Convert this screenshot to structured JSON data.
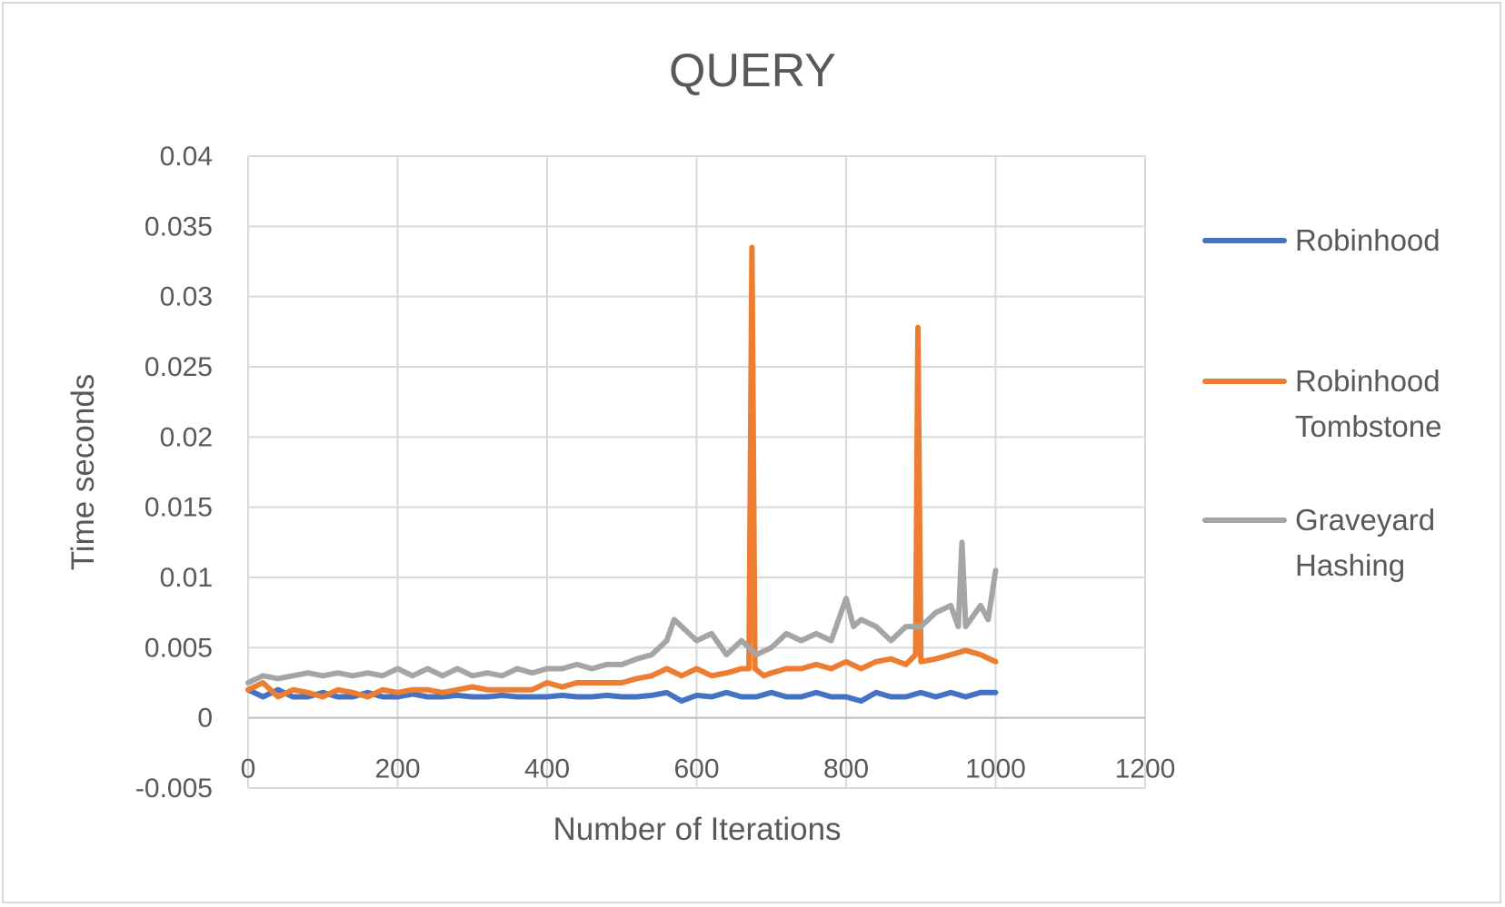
{
  "chart_data": {
    "type": "line",
    "title": "QUERY",
    "xlabel": "Number of Iterations",
    "ylabel": "Time seconds",
    "xlim": [
      0,
      1200
    ],
    "ylim": [
      -0.005,
      0.04
    ],
    "x_ticks": [
      0,
      200,
      400,
      600,
      800,
      1000,
      1200
    ],
    "y_ticks": [
      -0.005,
      0,
      0.005,
      0.01,
      0.015,
      0.02,
      0.025,
      0.03,
      0.035,
      0.04
    ],
    "x_tick_labels": [
      "0",
      "200",
      "400",
      "600",
      "800",
      "1000",
      "1200"
    ],
    "y_tick_labels": [
      "-0.005",
      "0",
      "0.005",
      "0.01",
      "0.015",
      "0.02",
      "0.025",
      "0.03",
      "0.035",
      "0.04"
    ],
    "grid": true,
    "legend_position": "right",
    "series": [
      {
        "name": "Robinhood",
        "legend_lines": [
          "Robinhood"
        ],
        "color": "#4472C4",
        "x": [
          0,
          20,
          40,
          60,
          80,
          100,
          120,
          140,
          160,
          180,
          200,
          220,
          240,
          260,
          280,
          300,
          320,
          340,
          360,
          380,
          400,
          420,
          440,
          460,
          480,
          500,
          520,
          540,
          560,
          580,
          600,
          620,
          640,
          660,
          680,
          700,
          720,
          740,
          760,
          780,
          800,
          820,
          840,
          860,
          880,
          900,
          920,
          940,
          960,
          980,
          1000
        ],
        "values": [
          0.002,
          0.0015,
          0.002,
          0.0015,
          0.0015,
          0.0018,
          0.0015,
          0.0015,
          0.0018,
          0.0015,
          0.0015,
          0.0017,
          0.0015,
          0.0015,
          0.0016,
          0.0015,
          0.0015,
          0.0016,
          0.0015,
          0.0015,
          0.0015,
          0.0016,
          0.0015,
          0.0015,
          0.0016,
          0.0015,
          0.0015,
          0.0016,
          0.0018,
          0.0012,
          0.0016,
          0.0015,
          0.0018,
          0.0015,
          0.0015,
          0.0018,
          0.0015,
          0.0015,
          0.0018,
          0.0015,
          0.0015,
          0.0012,
          0.0018,
          0.0015,
          0.0015,
          0.0018,
          0.0015,
          0.0018,
          0.0015,
          0.0018,
          0.0018
        ]
      },
      {
        "name": "Robinhood Tombstone",
        "legend_lines": [
          "Robinhood",
          "Tombstone"
        ],
        "color": "#ED7D31",
        "x": [
          0,
          20,
          40,
          60,
          80,
          100,
          120,
          140,
          160,
          180,
          200,
          220,
          240,
          260,
          280,
          300,
          320,
          340,
          360,
          380,
          400,
          420,
          440,
          460,
          480,
          500,
          520,
          540,
          560,
          580,
          600,
          620,
          640,
          660,
          670,
          674,
          678,
          690,
          700,
          720,
          740,
          760,
          780,
          800,
          820,
          840,
          860,
          880,
          893,
          896,
          900,
          920,
          940,
          960,
          980,
          1000
        ],
        "values": [
          0.002,
          0.0025,
          0.0015,
          0.002,
          0.0018,
          0.0015,
          0.002,
          0.0018,
          0.0015,
          0.002,
          0.0018,
          0.002,
          0.002,
          0.0018,
          0.002,
          0.0022,
          0.002,
          0.002,
          0.002,
          0.002,
          0.0025,
          0.0022,
          0.0025,
          0.0025,
          0.0025,
          0.0025,
          0.0028,
          0.003,
          0.0035,
          0.003,
          0.0035,
          0.003,
          0.0032,
          0.0035,
          0.0035,
          0.0335,
          0.0035,
          0.003,
          0.0032,
          0.0035,
          0.0035,
          0.0038,
          0.0035,
          0.004,
          0.0035,
          0.004,
          0.0042,
          0.0038,
          0.0045,
          0.0278,
          0.004,
          0.0042,
          0.0045,
          0.0048,
          0.0045,
          0.004
        ]
      },
      {
        "name": "Graveyard Hashing",
        "legend_lines": [
          "Graveyard",
          "Hashing"
        ],
        "color": "#A5A5A5",
        "x": [
          0,
          20,
          40,
          60,
          80,
          100,
          120,
          140,
          160,
          180,
          200,
          220,
          240,
          260,
          280,
          300,
          320,
          340,
          360,
          380,
          400,
          420,
          440,
          460,
          480,
          500,
          520,
          540,
          560,
          570,
          580,
          600,
          620,
          640,
          660,
          680,
          700,
          720,
          740,
          760,
          780,
          800,
          810,
          820,
          840,
          860,
          880,
          900,
          920,
          940,
          950,
          955,
          960,
          980,
          990,
          1000
        ],
        "values": [
          0.0025,
          0.003,
          0.0028,
          0.003,
          0.0032,
          0.003,
          0.0032,
          0.003,
          0.0032,
          0.003,
          0.0035,
          0.003,
          0.0035,
          0.003,
          0.0035,
          0.003,
          0.0032,
          0.003,
          0.0035,
          0.0032,
          0.0035,
          0.0035,
          0.0038,
          0.0035,
          0.0038,
          0.0038,
          0.0042,
          0.0045,
          0.0055,
          0.007,
          0.0065,
          0.0055,
          0.006,
          0.0045,
          0.0055,
          0.0045,
          0.005,
          0.006,
          0.0055,
          0.006,
          0.0055,
          0.0085,
          0.0065,
          0.007,
          0.0065,
          0.0055,
          0.0065,
          0.0065,
          0.0075,
          0.008,
          0.0065,
          0.0125,
          0.0065,
          0.008,
          0.007,
          0.0105
        ]
      }
    ]
  }
}
